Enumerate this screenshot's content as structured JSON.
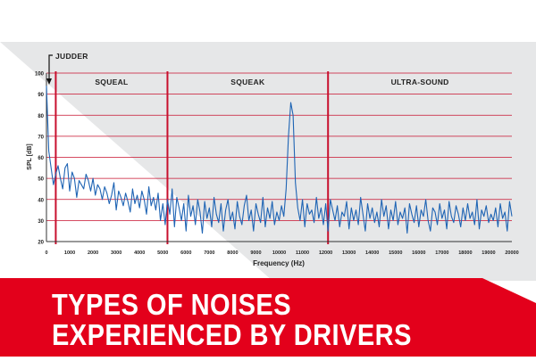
{
  "banner": {
    "line1": "TYPES OF NOISES",
    "line2": "EXPERIENCED BY DRIVERS",
    "background_color": "#e3001b"
  },
  "chart_data": {
    "type": "line",
    "xlabel": "Frequency (Hz)",
    "ylabel": "SPL [dB]",
    "xlim": [
      0,
      20000
    ],
    "ylim": [
      20,
      100
    ],
    "x_ticks": [
      "0",
      "1000",
      "2000",
      "3000",
      "4000",
      "5000",
      "6000",
      "7000",
      "8000",
      "9000",
      "10000",
      "11000",
      "12000",
      "13000",
      "14000",
      "15000",
      "16000",
      "17000",
      "18000",
      "19000",
      "20000"
    ],
    "y_ticks": [
      "20",
      "30",
      "40",
      "50",
      "60",
      "70",
      "80",
      "90",
      "100"
    ],
    "grid": "horizontal",
    "line_color": "#1e64b4",
    "grid_color": "#c8102e",
    "regions": [
      {
        "label": "JUDDER",
        "start": 0,
        "end": 400
      },
      {
        "label": "SQUEAL",
        "start": 400,
        "end": 5200
      },
      {
        "label": "SQUEAK",
        "start": 5200,
        "end": 12100
      },
      {
        "label": "ULTRA-SOUND",
        "start": 12100,
        "end": 20000
      }
    ],
    "boundaries": [
      400,
      5200,
      12100
    ],
    "series": [
      {
        "x": [
          0,
          100,
          200,
          300,
          400,
          500,
          600,
          700,
          800,
          900,
          1000,
          1100,
          1200,
          1300,
          1400,
          1500,
          1600,
          1700,
          1800,
          1900,
          2000,
          2100,
          2200,
          2300,
          2400,
          2500,
          2600,
          2700,
          2800,
          2900,
          3000,
          3100,
          3200,
          3300,
          3400,
          3500,
          3600,
          3700,
          3800,
          3900,
          4000,
          4100,
          4200,
          4300,
          4400,
          4500,
          4600,
          4700,
          4800,
          4900,
          5000,
          5100,
          5200,
          5300,
          5400,
          5500,
          5600,
          5700,
          5800,
          5900,
          6000,
          6100,
          6200,
          6300,
          6400,
          6500,
          6600,
          6700,
          6800,
          6900,
          7000,
          7100,
          7200,
          7300,
          7400,
          7500,
          7600,
          7700,
          7800,
          7900,
          8000,
          8100,
          8200,
          8300,
          8400,
          8500,
          8600,
          8700,
          8800,
          8900,
          9000,
          9100,
          9200,
          9300,
          9400,
          9500,
          9600,
          9700,
          9800,
          9900,
          10000,
          10100,
          10200,
          10300,
          10400,
          10500,
          10600,
          10700,
          10800,
          10900,
          11000,
          11100,
          11200,
          11300,
          11400,
          11500,
          11600,
          11700,
          11800,
          11900,
          12000,
          12100,
          12200,
          12300,
          12400,
          12500,
          12600,
          12700,
          12800,
          12900,
          13000,
          13100,
          13200,
          13300,
          13400,
          13500,
          13600,
          13700,
          13800,
          13900,
          14000,
          14100,
          14200,
          14300,
          14400,
          14500,
          14600,
          14700,
          14800,
          14900,
          15000,
          15100,
          15200,
          15300,
          15400,
          15500,
          15600,
          15700,
          15800,
          15900,
          16000,
          16100,
          16200,
          16300,
          16400,
          16500,
          16600,
          16700,
          16800,
          16900,
          17000,
          17100,
          17200,
          17300,
          17400,
          17500,
          17600,
          17700,
          17800,
          17900,
          18000,
          18100,
          18200,
          18300,
          18400,
          18500,
          18600,
          18700,
          18800,
          18900,
          19000,
          19100,
          19200,
          19300,
          19400,
          19500,
          19600,
          19700,
          19800,
          19900,
          20000
        ],
        "y": [
          94,
          63,
          55,
          47,
          52,
          56,
          50,
          45,
          55,
          57,
          44,
          53,
          50,
          41,
          49,
          47,
          45,
          52,
          49,
          44,
          50,
          42,
          47,
          45,
          40,
          46,
          43,
          38,
          42,
          48,
          35,
          44,
          41,
          37,
          43,
          39,
          34,
          45,
          38,
          42,
          36,
          44,
          40,
          33,
          46,
          37,
          41,
          35,
          43,
          30,
          38,
          28,
          40,
          33,
          45,
          27,
          41,
          36,
          30,
          38,
          25,
          42,
          32,
          37,
          28,
          40,
          34,
          24,
          39,
          31,
          36,
          27,
          41,
          33,
          29,
          38,
          25,
          35,
          40,
          30,
          34,
          26,
          39,
          32,
          28,
          37,
          42,
          30,
          35,
          25,
          38,
          33,
          29,
          41,
          27,
          36,
          31,
          39,
          28,
          34,
          30,
          37,
          32,
          45,
          70,
          86,
          80,
          48,
          36,
          30,
          40,
          27,
          38,
          33,
          35,
          29,
          41,
          31,
          36,
          28,
          38,
          25,
          40,
          35,
          30,
          37,
          27,
          34,
          32,
          39,
          26,
          36,
          30,
          35,
          28,
          41,
          33,
          25,
          38,
          31,
          36,
          29,
          34,
          27,
          40,
          32,
          37,
          26,
          35,
          30,
          39,
          28,
          34,
          31,
          36,
          24,
          38,
          33,
          29,
          37,
          27,
          35,
          32,
          40,
          30,
          25,
          36,
          34,
          28,
          38,
          31,
          35,
          26,
          39,
          32,
          29,
          37,
          33,
          27,
          36,
          30,
          38,
          31,
          34,
          28,
          40,
          26,
          35,
          32,
          37,
          29,
          33,
          30,
          36,
          27,
          38,
          31,
          34,
          25,
          39,
          32
        ]
      }
    ]
  }
}
